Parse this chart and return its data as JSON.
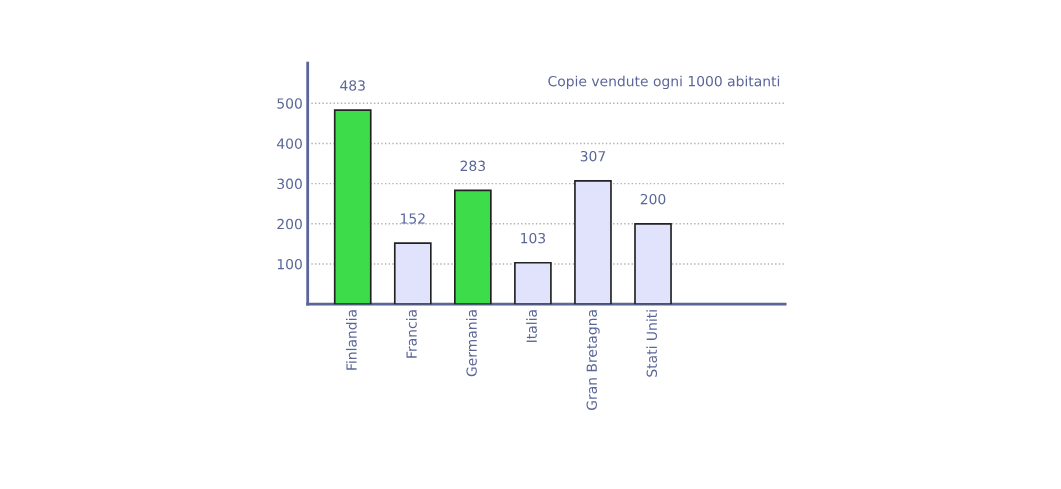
{
  "chart_data": {
    "type": "bar",
    "categories": [
      "Finlandia",
      "Francia",
      "Germania",
      "Italia",
      "Gran Bretagna",
      "Stati Uniti"
    ],
    "values": [
      483,
      152,
      283,
      103,
      307,
      200
    ],
    "colors": [
      "#3ddc4a",
      "#e0e3fb",
      "#3ddc4a",
      "#e0e3fb",
      "#e0e3fb",
      "#e0e3fb"
    ],
    "ylim": [
      0,
      600
    ],
    "yticks": [
      100,
      200,
      300,
      400,
      500
    ],
    "grid": "y",
    "data_labels": true,
    "annotations": [
      "Copie vendute ogni 1000 abitanti"
    ]
  }
}
